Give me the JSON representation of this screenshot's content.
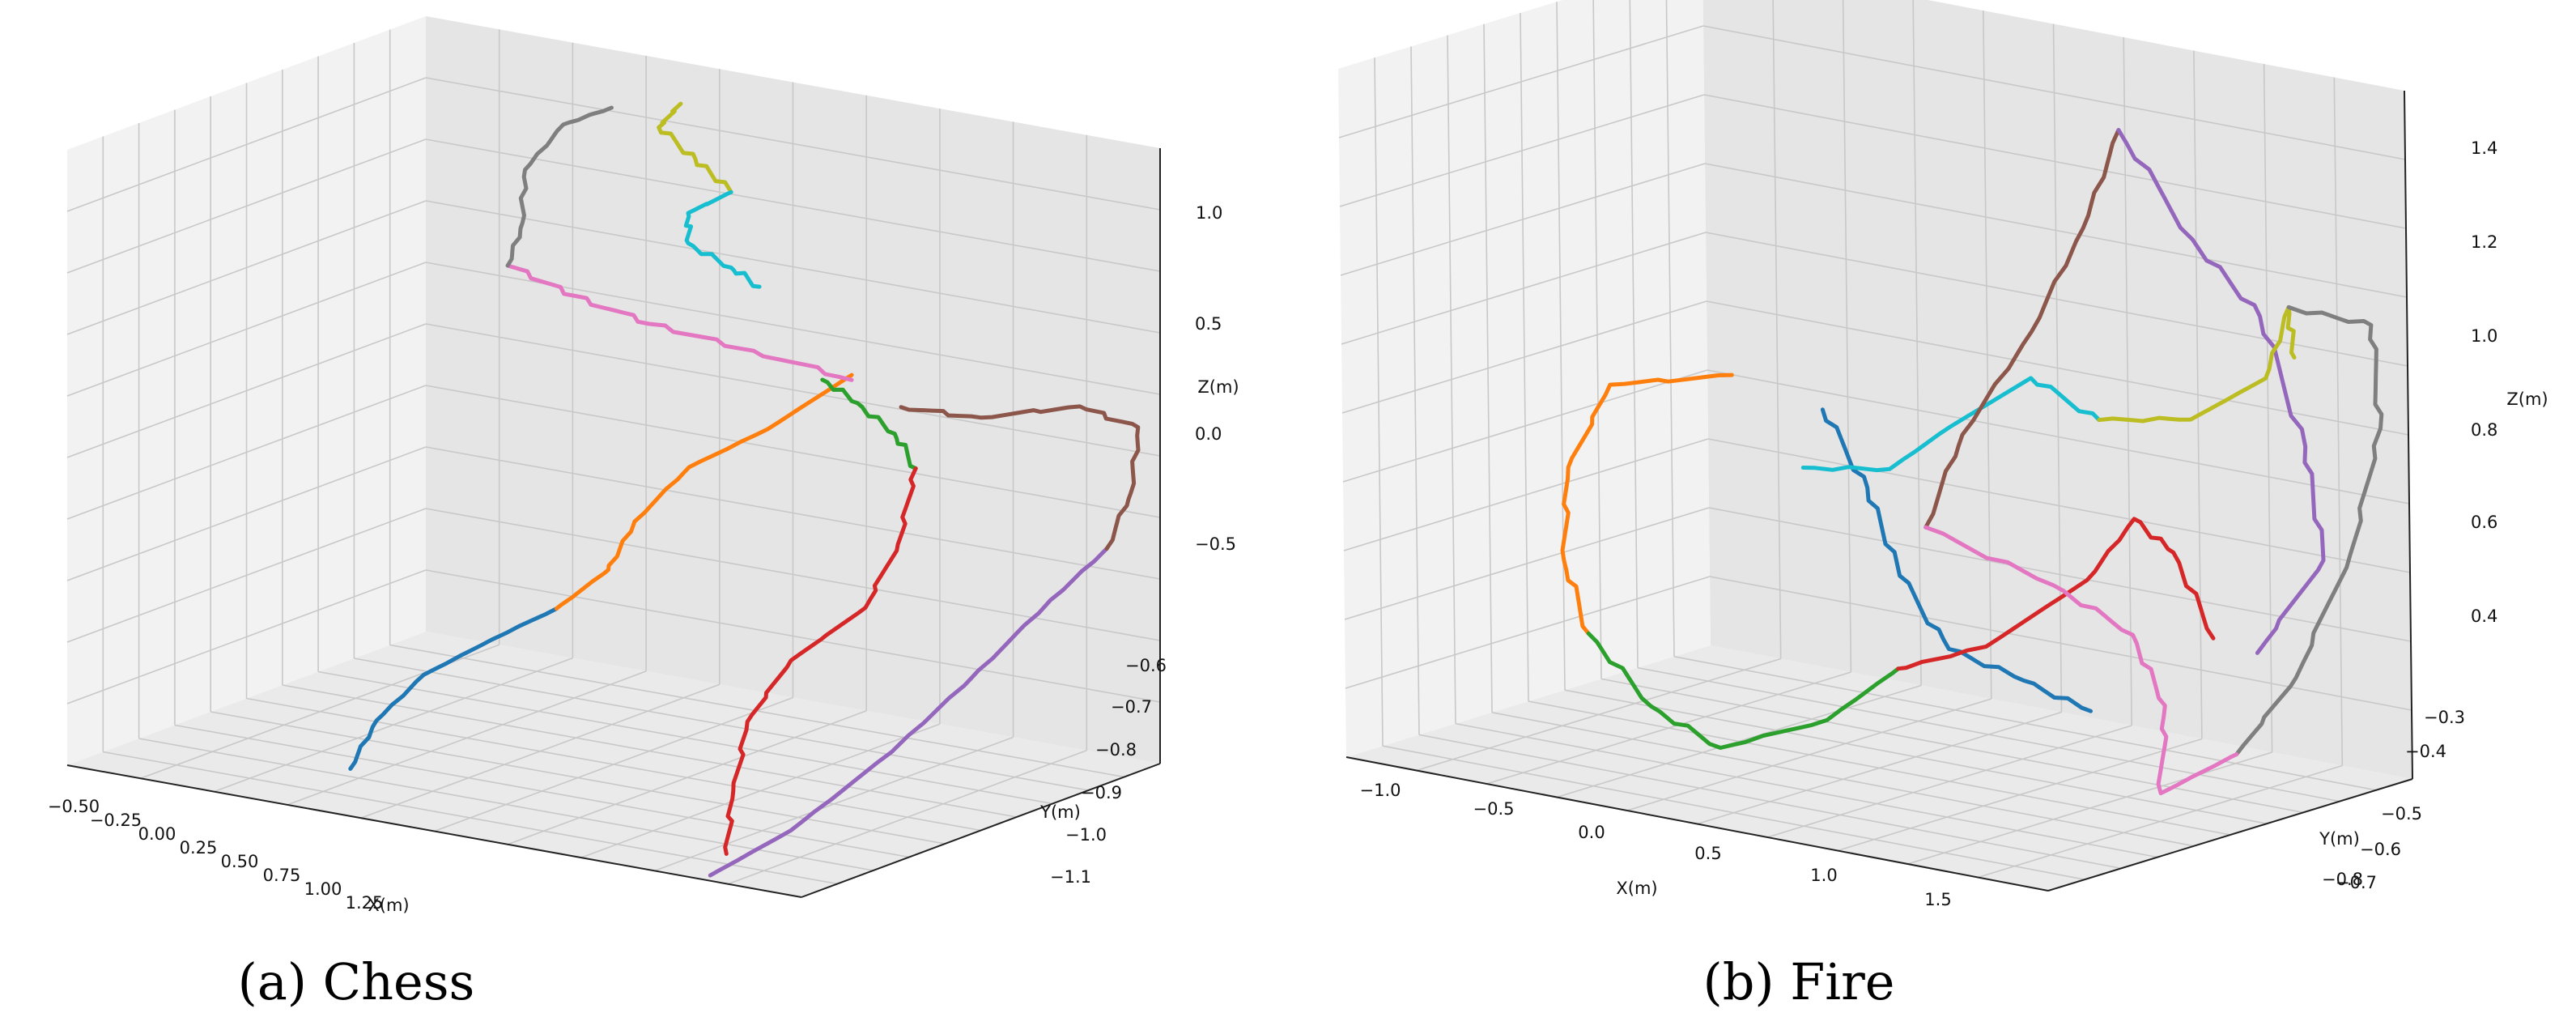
{
  "chart_data": [
    {
      "type": "line3d",
      "caption": "(a) Chess",
      "xlabel": "X(m)",
      "ylabel": "Y(m)",
      "zlabel": "Z(m)",
      "xticks": [
        "−0.50",
        "−0.25",
        "0.00",
        "0.25",
        "0.50",
        "0.75",
        "1.00",
        "1.25"
      ],
      "yticks": [
        "−0.6",
        "−0.7",
        "−0.8",
        "−0.9",
        "−1.0",
        "−1.1"
      ],
      "zticks": [
        "1.0",
        "0.5",
        "0.0",
        "−0.5"
      ],
      "xlim": [
        -0.6,
        1.4
      ],
      "ylim": [
        -1.15,
        -0.58
      ],
      "zlim": [
        -1.0,
        1.45
      ],
      "grid": true,
      "series": [
        {
          "color": "#1f77b4",
          "points": [
            [
              0.0,
              -1.05,
              -0.95
            ],
            [
              0.02,
              -1.02,
              -0.78
            ],
            [
              0.08,
              -0.98,
              -0.62
            ],
            [
              0.18,
              -0.93,
              -0.5
            ],
            [
              0.27,
              -0.88,
              -0.4
            ]
          ]
        },
        {
          "color": "#ff7f0e",
          "points": [
            [
              0.27,
              -0.88,
              -0.4
            ],
            [
              0.36,
              -0.85,
              -0.25
            ],
            [
              0.38,
              -0.82,
              -0.08
            ],
            [
              0.46,
              -0.78,
              0.12
            ],
            [
              0.64,
              -0.76,
              0.3
            ],
            [
              0.8,
              -0.72,
              0.52
            ]
          ]
        },
        {
          "color": "#2ca02c",
          "points": [
            [
              0.72,
              -0.72,
              0.48
            ],
            [
              0.85,
              -0.74,
              0.44
            ],
            [
              1.02,
              -0.78,
              0.4
            ],
            [
              1.18,
              -0.84,
              0.36
            ]
          ]
        },
        {
          "color": "#d62728",
          "points": [
            [
              1.18,
              -0.84,
              0.36
            ],
            [
              1.2,
              -0.88,
              0.1
            ],
            [
              1.18,
              -0.92,
              -0.12
            ],
            [
              1.08,
              -0.98,
              -0.3
            ],
            [
              1.03,
              -1.02,
              -0.52
            ],
            [
              1.06,
              -1.06,
              -0.75
            ],
            [
              1.11,
              -1.1,
              -0.95
            ]
          ]
        },
        {
          "color": "#9467bd",
          "points": [
            [
              1.1,
              -1.12,
              -1.02
            ],
            [
              1.2,
              -1.05,
              -0.88
            ],
            [
              1.32,
              -0.96,
              -0.62
            ],
            [
              1.4,
              -0.88,
              -0.38
            ],
            [
              1.5,
              -0.82,
              -0.12
            ],
            [
              1.58,
              -0.77,
              0.08
            ]
          ]
        },
        {
          "color": "#8c564b",
          "points": [
            [
              1.58,
              -0.77,
              0.08
            ],
            [
              1.56,
              -0.72,
              0.25
            ],
            [
              1.46,
              -0.65,
              0.42
            ],
            [
              1.25,
              -0.62,
              0.42
            ],
            [
              1.05,
              -0.66,
              0.36
            ],
            [
              0.9,
              -0.7,
              0.4
            ]
          ]
        },
        {
          "color": "#e377c2",
          "points": [
            [
              0.8,
              -0.72,
              0.5
            ],
            [
              0.55,
              -0.73,
              0.56
            ],
            [
              0.3,
              -0.75,
              0.62
            ],
            [
              0.15,
              -0.78,
              0.72
            ],
            [
              0.0,
              -0.8,
              0.82
            ]
          ]
        },
        {
          "color": "#7f7f7f",
          "points": [
            [
              0.0,
              -0.8,
              0.82
            ],
            [
              0.04,
              -0.8,
              1.0
            ],
            [
              0.03,
              -0.79,
              1.2
            ],
            [
              0.1,
              -0.77,
              1.38
            ],
            [
              0.18,
              -0.74,
              1.44
            ]
          ]
        },
        {
          "color": "#bcbd22",
          "points": [
            [
              0.3,
              -0.7,
              1.45
            ],
            [
              0.24,
              -0.7,
              1.34
            ],
            [
              0.34,
              -0.7,
              1.24
            ],
            [
              0.42,
              -0.69,
              1.12
            ]
          ]
        },
        {
          "color": "#17becf",
          "points": [
            [
              0.42,
              -0.69,
              1.12
            ],
            [
              0.32,
              -0.7,
              1.02
            ],
            [
              0.32,
              -0.7,
              0.9
            ],
            [
              0.42,
              -0.69,
              0.82
            ],
            [
              0.48,
              -0.68,
              0.75
            ]
          ]
        }
      ]
    },
    {
      "type": "line3d",
      "caption": "(b) Fire",
      "xlabel": "X(m)",
      "ylabel": "Y(m)",
      "zlabel": "Z(m)",
      "xticks": [
        "−1.0",
        "−0.5",
        "0.0",
        "0.5",
        "1.0",
        "1.5"
      ],
      "yticks": [
        "−0.3",
        "−0.4",
        "−0.5",
        "−0.6",
        "−0.7",
        "−0.8"
      ],
      "zticks": [
        "1.4",
        "1.2",
        "1.0",
        "0.8",
        "0.6",
        "0.4"
      ],
      "xlim": [
        -1.2,
        1.9
      ],
      "ylim": [
        -0.85,
        -0.27
      ],
      "zlim": [
        0.28,
        1.47
      ],
      "grid": true,
      "series": [
        {
          "color": "#ff7f0e",
          "points": [
            [
              -0.45,
              -0.5,
              0.88
            ],
            [
              -0.85,
              -0.55,
              0.85
            ],
            [
              -0.9,
              -0.6,
              0.72
            ],
            [
              -0.7,
              -0.68,
              0.6
            ],
            [
              -0.4,
              -0.75,
              0.52
            ]
          ]
        },
        {
          "color": "#1f77b4",
          "points": [
            [
              -0.05,
              -0.5,
              0.85
            ],
            [
              0.2,
              -0.52,
              0.74
            ],
            [
              0.45,
              -0.56,
              0.62
            ],
            [
              0.72,
              -0.58,
              0.52
            ],
            [
              1.05,
              -0.58,
              0.49
            ],
            [
              1.4,
              -0.6,
              0.47
            ]
          ]
        },
        {
          "color": "#2ca02c",
          "points": [
            [
              -0.4,
              -0.75,
              0.52
            ],
            [
              -0.1,
              -0.76,
              0.42
            ],
            [
              0.15,
              -0.74,
              0.36
            ],
            [
              0.4,
              -0.66,
              0.4
            ],
            [
              0.55,
              -0.6,
              0.48
            ]
          ]
        },
        {
          "color": "#d62728",
          "points": [
            [
              0.55,
              -0.6,
              0.48
            ],
            [
              0.8,
              -0.55,
              0.52
            ],
            [
              1.0,
              -0.46,
              0.62
            ],
            [
              1.1,
              -0.42,
              0.72
            ],
            [
              1.3,
              -0.43,
              0.68
            ],
            [
              1.5,
              -0.44,
              0.55
            ]
          ]
        },
        {
          "color": "#17becf",
          "points": [
            [
              0.0,
              -0.55,
              0.77
            ],
            [
              0.3,
              -0.52,
              0.78
            ],
            [
              0.4,
              -0.46,
              0.84
            ],
            [
              0.65,
              -0.42,
              0.93
            ],
            [
              0.95,
              -0.42,
              0.88
            ]
          ]
        },
        {
          "color": "#8c564b",
          "points": [
            [
              0.4,
              -0.5,
              0.68
            ],
            [
              0.4,
              -0.44,
              0.82
            ],
            [
              0.6,
              -0.4,
              1.0
            ],
            [
              0.75,
              -0.37,
              1.18
            ],
            [
              0.8,
              -0.33,
              1.34
            ]
          ]
        },
        {
          "color": "#9467bd",
          "points": [
            [
              0.8,
              -0.33,
              1.34
            ],
            [
              1.15,
              -0.34,
              1.18
            ],
            [
              1.5,
              -0.36,
              1.08
            ],
            [
              1.75,
              -0.38,
              0.88
            ],
            [
              1.88,
              -0.4,
              0.7
            ],
            [
              1.75,
              -0.46,
              0.55
            ]
          ]
        },
        {
          "color": "#bcbd22",
          "points": [
            [
              0.95,
              -0.42,
              0.88
            ],
            [
              1.3,
              -0.4,
              0.9
            ],
            [
              1.55,
              -0.37,
              0.98
            ],
            [
              1.6,
              -0.35,
              1.1
            ],
            [
              1.65,
              -0.36,
              1.02
            ]
          ]
        },
        {
          "color": "#7f7f7f",
          "points": [
            [
              1.6,
              -0.35,
              1.1
            ],
            [
              1.88,
              -0.32,
              1.08
            ],
            [
              2.0,
              -0.35,
              0.92
            ],
            [
              2.0,
              -0.4,
              0.72
            ],
            [
              1.92,
              -0.46,
              0.52
            ],
            [
              1.82,
              -0.52,
              0.4
            ]
          ]
        },
        {
          "color": "#e377c2",
          "points": [
            [
              0.4,
              -0.5,
              0.68
            ],
            [
              0.85,
              -0.46,
              0.6
            ],
            [
              1.2,
              -0.46,
              0.54
            ],
            [
              1.45,
              -0.5,
              0.45
            ],
            [
              1.65,
              -0.58,
              0.34
            ],
            [
              1.82,
              -0.52,
              0.4
            ]
          ]
        }
      ]
    }
  ]
}
